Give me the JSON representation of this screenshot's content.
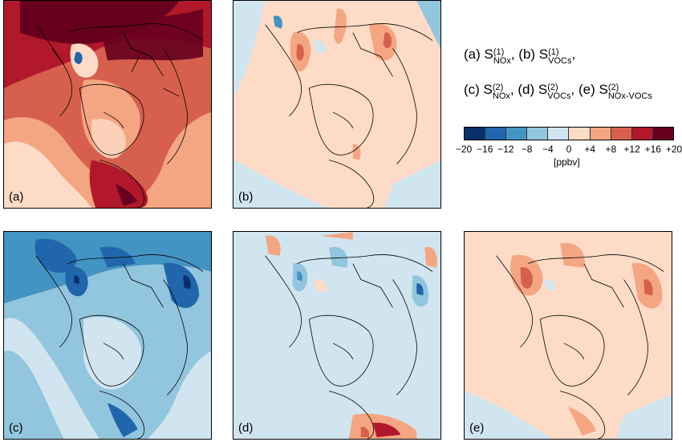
{
  "colorbar": {
    "colors": [
      "#08306b",
      "#2166ac",
      "#4393c3",
      "#92c5de",
      "#d1e5f0",
      "#fddbc7",
      "#f4a582",
      "#d6604d",
      "#b2182b",
      "#67001f"
    ],
    "ticks": [
      "−20",
      "−16",
      "−12",
      "−8",
      "−4",
      "0",
      "+4",
      "+8",
      "+12",
      "+16",
      "+20"
    ],
    "unit": "[ppbv]"
  },
  "legend": {
    "line1": [
      {
        "prefix": "(a) S",
        "sup": "(1)",
        "sub": "NOx",
        "sep": ","
      },
      {
        "prefix": " (b) S",
        "sup": "(1)",
        "sub": "VOCs",
        "sep": ","
      }
    ],
    "line2": [
      {
        "prefix": "(c) S",
        "sup": "(2)",
        "sub": "NOx",
        "sep": ","
      },
      {
        "prefix": " (d) S",
        "sup": "(2)",
        "sub": "VOCs",
        "sep": ","
      },
      {
        "prefix": " (e) S",
        "sup": "(2)",
        "sub": "NOx-VOCs",
        "sep": ""
      }
    ]
  },
  "panels": [
    {
      "id": "pa",
      "label": "(a)",
      "background": "#d6604d"
    },
    {
      "id": "pb",
      "label": "(b)",
      "background": "#fddbc7"
    },
    {
      "id": "pc",
      "label": "(c)",
      "background": "#92c5de"
    },
    {
      "id": "pd",
      "label": "(d)",
      "background": "#d1e5f0"
    },
    {
      "id": "pe",
      "label": "(e)",
      "background": "#fddbc7"
    }
  ]
}
